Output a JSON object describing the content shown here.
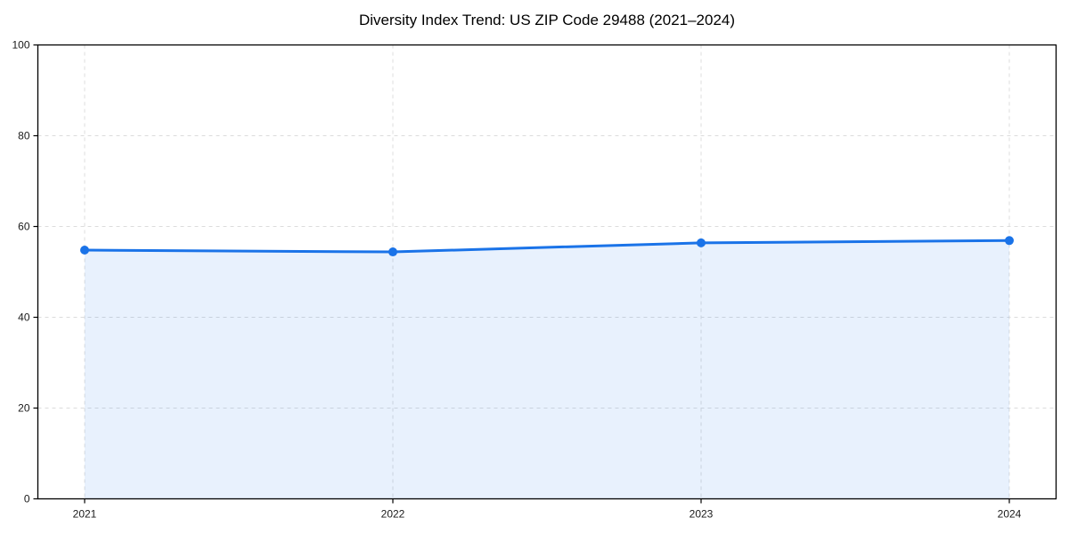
{
  "title": "Diversity Index Trend: US ZIP Code 29488 (2021–2024)",
  "chart_data": {
    "type": "area",
    "title": "Diversity Index Trend: US ZIP Code 29488 (2021–2024)",
    "categories": [
      "2021",
      "2022",
      "2023",
      "2024"
    ],
    "series": [
      {
        "name": "Diversity Index",
        "values": [
          54.8,
          54.4,
          56.4,
          56.9
        ]
      }
    ],
    "xlabel": "",
    "ylabel": "",
    "ylim": [
      0,
      100
    ],
    "yticks": [
      0,
      20,
      40,
      60,
      80,
      100
    ],
    "grid": true,
    "grid_style": "dashed",
    "legend": "none",
    "line_color": "#1a73e8",
    "marker_color": "#1a73e8",
    "fill_color": "#1a73e8",
    "fill_opacity": 0.1,
    "grid_color": "#dcdcdc",
    "spine_color": "#000000",
    "tick_label_color": "#1a1a1a",
    "background_color": "#ffffff"
  }
}
